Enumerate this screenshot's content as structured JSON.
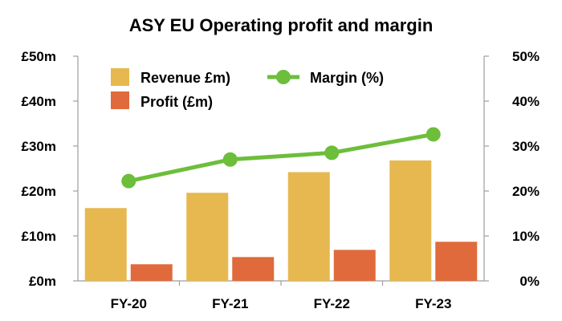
{
  "chart_data": {
    "type": "bar",
    "title": "ASY EU Operating profit and margin",
    "categories": [
      "FY-20",
      "FY-21",
      "FY-22",
      "FY-23"
    ],
    "series": [
      {
        "name": "Revenue £m)",
        "kind": "bar",
        "axis": "left",
        "color": "#E6B84F",
        "values": [
          16.2,
          19.6,
          24.2,
          26.8
        ]
      },
      {
        "name": "Profit (£m)",
        "kind": "bar",
        "axis": "left",
        "color": "#E06A3B",
        "values": [
          3.7,
          5.3,
          6.9,
          8.7
        ]
      },
      {
        "name": "Margin (%)",
        "kind": "line",
        "axis": "right",
        "color": "#6DBE3A",
        "values": [
          22.2,
          27.0,
          28.5,
          32.6
        ]
      }
    ],
    "left_axis": {
      "min": 0,
      "max": 50,
      "step": 10,
      "tick_labels": [
        "£0m",
        "£10m",
        "£20m",
        "£30m",
        "£40m",
        "£50m"
      ]
    },
    "right_axis": {
      "min": 0,
      "max": 50,
      "step": 10,
      "tick_labels": [
        "0%",
        "10%",
        "20%",
        "30%",
        "40%",
        "50%"
      ]
    },
    "xlabel": "",
    "ylabel": "",
    "grid": false,
    "legend_position": "top-left"
  }
}
